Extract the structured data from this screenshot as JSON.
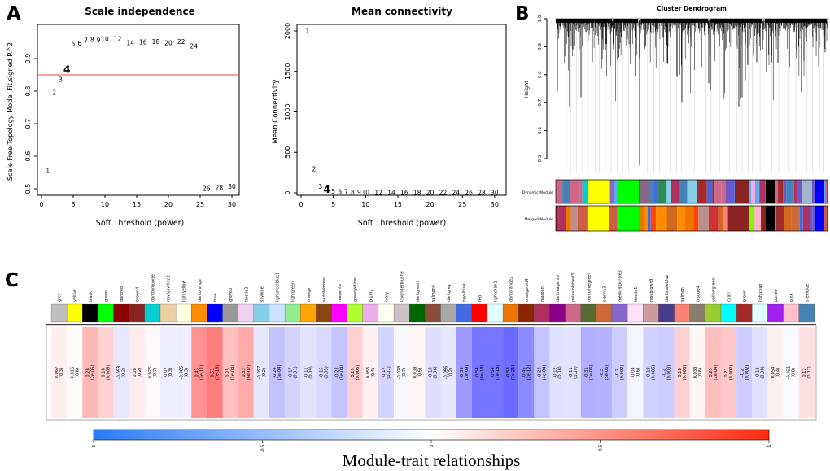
{
  "panels": {
    "a": "A",
    "b": "B",
    "c": "C"
  },
  "chart_data": [
    {
      "type": "scatter",
      "panel": "A",
      "title": "Scale independence",
      "xlabel": "Soft Threshold (power)",
      "ylabel": "Scale Free Topology Model Fit,signed R^2",
      "xticks": [
        0,
        5,
        10,
        15,
        20,
        25,
        30
      ],
      "yticks": [
        0.5,
        0.6,
        0.7,
        0.8,
        0.9
      ],
      "xlim": [
        0,
        31
      ],
      "ylim": [
        0.48,
        0.98
      ],
      "hline": 0.85,
      "hline_color": "#FF3B30",
      "point_color": "#FF0000",
      "highlight_color": "#0000CD",
      "x": [
        1,
        2,
        3,
        5,
        6,
        7,
        8,
        9,
        10,
        12,
        14,
        16,
        18,
        20,
        22,
        24,
        26,
        28,
        30
      ],
      "y": [
        0.555,
        0.795,
        0.835,
        0.945,
        0.947,
        0.955,
        0.958,
        0.956,
        0.96,
        0.96,
        0.948,
        0.95,
        0.952,
        0.948,
        0.951,
        0.938,
        0.5,
        0.503,
        0.507
      ],
      "highlight": {
        "x": 4,
        "y": 0.865
      }
    },
    {
      "type": "scatter",
      "panel": "A",
      "title": "Mean connectivity",
      "xlabel": "Soft Threshold (power)",
      "ylabel": "Mean Connectivity",
      "xticks": [
        0,
        5,
        10,
        15,
        20,
        25,
        30
      ],
      "yticks": [
        0,
        500,
        1000,
        1500,
        2000
      ],
      "xlim": [
        0,
        31
      ],
      "ylim": [
        0,
        2050
      ],
      "point_color": "#FF0000",
      "highlight_color": "#0000CD",
      "x": [
        1,
        2,
        3,
        5,
        6,
        7,
        8,
        9,
        10,
        12,
        14,
        16,
        18,
        20,
        22,
        24,
        26,
        28,
        30
      ],
      "y": [
        2000,
        290,
        75,
        18,
        12,
        9,
        7,
        5,
        4,
        3,
        2,
        2,
        1,
        1,
        1,
        1,
        1,
        1,
        1
      ],
      "highlight": {
        "x": 4,
        "y": 35
      }
    },
    {
      "type": "dendrogram",
      "panel": "B",
      "title": "Cluster Dendrogram",
      "ylabel": "Height",
      "yticks": [
        0.5,
        0.6,
        0.7,
        0.8,
        0.9,
        1.0
      ],
      "ylim": [
        0.45,
        1.0
      ],
      "bands": [
        "Dynamic Module",
        "Merged Module"
      ],
      "deep_spikes": [
        [
          700,
          0.685
        ],
        [
          714,
          0.72
        ],
        [
          745,
          0.91
        ],
        [
          786,
          0.475
        ],
        [
          820,
          0.84
        ],
        [
          838,
          0.7
        ],
        [
          871,
          0.77
        ],
        [
          908,
          0.685
        ],
        [
          912,
          0.72
        ],
        [
          916,
          0.78
        ],
        [
          930,
          0.845
        ],
        [
          956,
          0.84
        ],
        [
          988,
          0.85
        ],
        [
          1014,
          0.88
        ]
      ],
      "dynamic_palette": [
        "#4169E1",
        "#6A5ACD",
        "#87CEEB",
        "#3A5FCD",
        "#8968CD",
        "#B03060",
        "#5CACEE",
        "#00CED1",
        "#CD6889",
        "#4682B4",
        "#9FB6CD",
        "#FF00FF",
        "#8B668B",
        "#A52A2A",
        "#6959CD",
        "#2E8B57"
      ],
      "merged_palette": [
        "#CD5B45",
        "#A52A2A",
        "#CD6839",
        "#EE7600",
        "#B03060",
        "#8B2323",
        "#FA8072",
        "#CD6889",
        "#FF4500",
        "#8B4513",
        "#CD3333",
        "#4169E1",
        "#FF8C00",
        "#6959CD",
        "#D2691E",
        "#BC8F8F"
      ],
      "dynamic_blocks": [
        {
          "x": 723,
          "w": 25,
          "c": "#FFFF00"
        },
        {
          "x": 758,
          "w": 27,
          "c": "#00FF00"
        },
        {
          "x": 903,
          "w": 17,
          "c": "#8B2323"
        },
        {
          "x": 923,
          "w": 5,
          "c": "#EEAEEE"
        },
        {
          "x": 941,
          "w": 11,
          "c": "#000000"
        },
        {
          "x": 1001,
          "w": 12,
          "c": "#0000FF"
        }
      ],
      "merged_blocks": [
        {
          "x": 723,
          "w": 25,
          "c": "#FFFF00"
        },
        {
          "x": 758,
          "w": 27,
          "c": "#00FF00"
        },
        {
          "x": 895,
          "w": 25,
          "c": "#8B2323"
        },
        {
          "x": 920,
          "w": 6,
          "c": "#7CFC00"
        },
        {
          "x": 927,
          "w": 8,
          "c": "#FFB5C5"
        },
        {
          "x": 941,
          "w": 11,
          "c": "#000000"
        },
        {
          "x": 1001,
          "w": 12,
          "c": "#0000FF"
        }
      ]
    },
    {
      "type": "heatmap",
      "panel": "C",
      "title": "Module-trait relationships",
      "columns": [
        "grey",
        "yellow",
        "black",
        "green",
        "darkred",
        "brown4",
        "darkturquoise",
        "navajowhite2",
        "lightyellow",
        "darkorange",
        "blue",
        "grey60",
        "thistle2",
        "skyblue",
        "lightsteelblue1",
        "lightgreen",
        "orange",
        "saddlebrown",
        "magenta",
        "greenyellow",
        "plum2",
        "ivory",
        "lavenderblush3",
        "darkgreen",
        "salmon4",
        "darkgrey",
        "royalblue",
        "red",
        "lightcyan1",
        "darkorange2",
        "orangered4",
        "maroon",
        "darkmagenta",
        "palevioletred3",
        "darkolivegreen",
        "sienna3",
        "mediumpurple3",
        "thistle1",
        "rosybrown3",
        "darkslateblue",
        "salmon",
        "bisque4",
        "yellowgreen",
        "cyan",
        "brown",
        "lightcyan",
        "purple",
        "pink",
        "steelblue"
      ],
      "column_colors": [
        "#BEBEBE",
        "#FFFF00",
        "#000000",
        "#00FF00",
        "#8B0000",
        "#8B2323",
        "#00CED1",
        "#EECFA1",
        "#FFFFE0",
        "#FF8C00",
        "#0000FF",
        "#999999",
        "#EED2EE",
        "#87CEEB",
        "#CAE1FF",
        "#90EE90",
        "#FFA500",
        "#8B4513",
        "#FF00FF",
        "#ADFF2F",
        "#EEAEEE",
        "#FFFFF0",
        "#CDC1C5",
        "#006400",
        "#8B4C39",
        "#A9A9A9",
        "#4169E1",
        "#FF0000",
        "#E0FFFF",
        "#EE7600",
        "#8B2500",
        "#B03060",
        "#8B008B",
        "#CD6889",
        "#556B2F",
        "#CD6839",
        "#8968CD",
        "#FFE1FF",
        "#CD9B9B",
        "#483D8B",
        "#FA8072",
        "#8B7D6B",
        "#9ACD32",
        "#00FFFF",
        "#A52A2A",
        "#E0FFFF",
        "#A020F0",
        "#FFC0CB",
        "#4682B4"
      ],
      "values": [
        0.067,
        0.015,
        0.28,
        0.18,
        -0.093,
        0.08,
        0.025,
        -0.07,
        -0.065,
        0.43,
        0.51,
        0.25,
        0.33,
        -0.097,
        -0.24,
        -0.17,
        -0.11,
        -0.15,
        -0.23,
        0.19,
        0.055,
        -0.17,
        -0.028,
        0.038,
        -0.13,
        -0.096,
        -0.39,
        -0.54,
        -0.54,
        -0.58,
        -0.45,
        -0.23,
        -0.12,
        -0.11,
        -0.31,
        -0.3,
        -0.2,
        -0.04,
        -0.18,
        -0.2,
        0.18,
        0.033,
        0.25,
        0.21,
        -0.2,
        -0.12,
        0.054,
        -0.021,
        0.12
      ],
      "p_values": [
        "0.3",
        "0.8",
        "2e-05",
        "0.005",
        "0.2",
        "0.2",
        "0.7",
        "0.3",
        "0.3",
        "3e-11",
        "7e-16",
        "2e-04",
        "6e-07",
        "0.2",
        "3e-04",
        "0.01",
        "0.09",
        "0.03",
        "5e-04",
        "0.005",
        "0.4",
        "0.01",
        "0.7",
        "0.6",
        "0.06",
        "0.2",
        "2e-09",
        "8e-18",
        "7e-18",
        "7e-21",
        "2e-12",
        "4e-04",
        "0.08",
        "0.09",
        "2e-06",
        "5e-06",
        "0.002",
        "0.6",
        "0.006",
        "0.003",
        "0.006",
        "0.6",
        "2e-04",
        "0.002",
        "0.002",
        "0.08",
        "0.4",
        "0.8",
        "0.07"
      ],
      "colorbar": {
        "min": -1,
        "max": 1,
        "ticks": [
          "-1",
          "-0.5",
          "0",
          "0.5",
          "1"
        ],
        "neg_color": "#2B7BF5",
        "mid_color": "#FFFFFF",
        "pos_color": "#FB2A10"
      }
    }
  ]
}
